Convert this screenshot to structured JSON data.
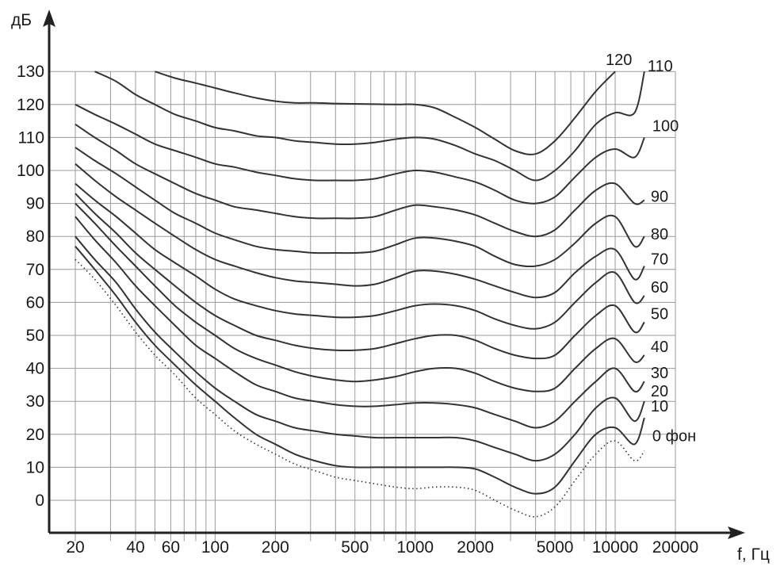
{
  "chart_data": {
    "type": "line",
    "title": "",
    "xlabel": "f, Гц",
    "ylabel": "дБ",
    "xscale": "log",
    "xlim": [
      20,
      20000
    ],
    "ylim": [
      -10,
      130
    ],
    "grid": true,
    "xticks": [
      20,
      40,
      60,
      100,
      200,
      500,
      1000,
      2000,
      5000,
      10000,
      20000
    ],
    "xtick_labels": [
      "20",
      "40",
      "60",
      "100",
      "200",
      "500",
      "1000",
      "2000",
      "5000",
      "10000",
      "20000"
    ],
    "yticks": [
      0,
      10,
      20,
      30,
      40,
      50,
      60,
      70,
      80,
      90,
      100,
      110,
      120,
      130
    ],
    "ytick_labels": [
      "0",
      "10",
      "20",
      "30",
      "40",
      "50",
      "60",
      "70",
      "80",
      "90",
      "100",
      "110",
      "120",
      "130"
    ],
    "series": [
      {
        "name": "0 фон",
        "style": "dotted",
        "x": [
          20,
          25,
          32,
          40,
          50,
          63,
          80,
          100,
          125,
          160,
          200,
          250,
          315,
          400,
          500,
          630,
          800,
          1000,
          1250,
          1600,
          2000,
          2500,
          3150,
          4000,
          5000,
          6300,
          8000,
          10000,
          12500,
          14000
        ],
        "y": [
          73,
          67,
          59,
          51,
          44,
          38,
          31,
          26,
          21,
          17,
          14,
          11,
          9,
          7,
          6,
          5,
          4,
          3.5,
          4,
          4,
          3,
          0,
          -3,
          -5,
          -2,
          6,
          14,
          18,
          12,
          15
        ]
      },
      {
        "name": "10",
        "x": [
          20,
          25,
          32,
          40,
          50,
          63,
          80,
          100,
          125,
          160,
          200,
          250,
          315,
          400,
          500,
          630,
          800,
          1000,
          1250,
          1600,
          2000,
          2500,
          3150,
          4000,
          5000,
          6300,
          8000,
          10000,
          12500,
          14000
        ],
        "y": [
          77,
          70,
          62,
          54,
          47,
          41,
          35,
          30,
          25,
          20,
          17,
          14,
          12,
          10.5,
          10,
          10,
          10,
          10,
          10,
          10,
          9.5,
          7,
          4,
          2,
          4,
          12,
          20,
          22,
          17,
          25
        ]
      },
      {
        "name": "20",
        "x": [
          20,
          25,
          32,
          40,
          50,
          63,
          80,
          100,
          125,
          160,
          200,
          250,
          315,
          400,
          500,
          630,
          800,
          1000,
          1250,
          1600,
          2000,
          2500,
          3150,
          4000,
          5000,
          6300,
          8000,
          10000,
          12500,
          14000
        ],
        "y": [
          80,
          73,
          66,
          58,
          51,
          45,
          39,
          34,
          30,
          26,
          24,
          22,
          21,
          20,
          19.5,
          19,
          19,
          19,
          19,
          19,
          18,
          16,
          14,
          12,
          14,
          20,
          28,
          31,
          24,
          30
        ]
      },
      {
        "name": "30",
        "x": [
          20,
          25,
          32,
          40,
          50,
          63,
          80,
          100,
          125,
          160,
          200,
          250,
          315,
          400,
          500,
          630,
          800,
          1000,
          1250,
          1600,
          2000,
          2500,
          3150,
          4000,
          5000,
          6300,
          8000,
          10000,
          12500,
          14000
        ],
        "y": [
          86,
          79,
          72,
          65,
          59,
          53,
          47,
          43,
          39,
          35,
          33,
          31,
          30,
          29,
          28.5,
          28.5,
          29,
          29.5,
          29.5,
          29,
          28,
          26,
          24,
          22,
          24,
          30,
          36,
          40,
          33,
          36
        ]
      },
      {
        "name": "40",
        "x": [
          20,
          25,
          32,
          40,
          50,
          63,
          80,
          100,
          125,
          160,
          200,
          250,
          315,
          400,
          500,
          630,
          800,
          1000,
          1250,
          1600,
          2000,
          2500,
          3150,
          4000,
          5000,
          6300,
          8000,
          10000,
          12500,
          14000
        ],
        "y": [
          90,
          84,
          77,
          71,
          65,
          59,
          54,
          50,
          46,
          43,
          41,
          39,
          37.5,
          36.5,
          36,
          36.5,
          37.5,
          39,
          40,
          40,
          38.5,
          36,
          34,
          33,
          34,
          40,
          46,
          49,
          42,
          44
        ]
      },
      {
        "name": "50",
        "x": [
          20,
          25,
          32,
          40,
          50,
          63,
          80,
          100,
          125,
          160,
          200,
          250,
          315,
          400,
          500,
          630,
          800,
          1000,
          1250,
          1600,
          2000,
          2500,
          3150,
          4000,
          5000,
          6300,
          8000,
          10000,
          12500,
          14000
        ],
        "y": [
          93,
          87,
          81,
          75,
          70,
          65,
          60,
          56,
          53,
          50,
          48.5,
          47,
          46,
          45.5,
          45.5,
          46,
          47.5,
          49,
          50,
          50,
          48.5,
          46,
          44,
          43,
          44,
          50,
          56,
          59,
          51,
          54
        ]
      },
      {
        "name": "60",
        "x": [
          20,
          25,
          32,
          40,
          50,
          63,
          80,
          100,
          125,
          160,
          200,
          250,
          315,
          400,
          500,
          630,
          800,
          1000,
          1250,
          1600,
          2000,
          2500,
          3150,
          4000,
          5000,
          6300,
          8000,
          10000,
          12500,
          14000
        ],
        "y": [
          96,
          91,
          86,
          81,
          76,
          72,
          68,
          64,
          61,
          59,
          57.5,
          56.5,
          56,
          55.5,
          55.5,
          56,
          57.5,
          59,
          59.5,
          59,
          57.5,
          55,
          53,
          52,
          54,
          60,
          66,
          69,
          60,
          62
        ]
      },
      {
        "name": "70",
        "x": [
          20,
          25,
          32,
          40,
          50,
          63,
          80,
          100,
          125,
          160,
          200,
          250,
          315,
          400,
          500,
          630,
          800,
          1000,
          1250,
          1600,
          2000,
          2500,
          3150,
          4000,
          5000,
          6300,
          8000,
          10000,
          12500,
          14000
        ],
        "y": [
          102,
          97,
          92,
          88,
          84,
          80,
          76,
          73,
          71,
          69,
          67.5,
          66.5,
          66,
          65.5,
          65,
          65.5,
          67.5,
          69.5,
          69.5,
          68.5,
          67,
          65,
          63,
          61.5,
          63,
          69,
          74,
          76,
          67,
          71
        ]
      },
      {
        "name": "80",
        "x": [
          20,
          25,
          32,
          40,
          50,
          63,
          80,
          100,
          125,
          160,
          200,
          250,
          315,
          400,
          500,
          630,
          800,
          1000,
          1250,
          1600,
          2000,
          2500,
          3150,
          4000,
          5000,
          6300,
          8000,
          10000,
          12500,
          14000
        ],
        "y": [
          107,
          103,
          99,
          95,
          91,
          87,
          84,
          81,
          79,
          77,
          76,
          75.5,
          75,
          75,
          75,
          75.5,
          77.5,
          79.5,
          79.5,
          78.5,
          77,
          74,
          71.5,
          71,
          73,
          78,
          84,
          86,
          77,
          80
        ]
      },
      {
        "name": "90",
        "x": [
          20,
          25,
          32,
          40,
          50,
          63,
          80,
          100,
          125,
          160,
          200,
          250,
          315,
          400,
          500,
          630,
          800,
          1000,
          1250,
          1600,
          2000,
          2500,
          3150,
          4000,
          5000,
          6300,
          8000,
          10000,
          12500,
          14000
        ],
        "y": [
          114,
          110,
          106,
          102,
          99,
          96,
          93,
          91,
          89,
          88,
          87,
          86,
          85.5,
          85.5,
          85.5,
          86,
          88,
          89.5,
          89,
          88,
          86.5,
          84,
          81.5,
          80,
          82,
          88,
          94,
          96,
          90,
          91
        ]
      },
      {
        "name": "100",
        "x": [
          20,
          25,
          32,
          40,
          50,
          63,
          80,
          100,
          125,
          160,
          200,
          250,
          315,
          400,
          500,
          630,
          800,
          1000,
          1250,
          1600,
          2000,
          2500,
          3150,
          4000,
          5000,
          6300,
          8000,
          10000,
          12500,
          14000
        ],
        "y": [
          120,
          117,
          114,
          111,
          108,
          106,
          104,
          102,
          101,
          99.5,
          98.5,
          97.5,
          97,
          97,
          97,
          97.5,
          99,
          100,
          99.5,
          98,
          96.5,
          94,
          91,
          90,
          92,
          98,
          104,
          106.5,
          104,
          110
        ]
      },
      {
        "name": "110",
        "x": [
          25,
          32,
          40,
          50,
          63,
          80,
          100,
          125,
          160,
          200,
          250,
          315,
          400,
          500,
          630,
          800,
          1000,
          1250,
          1600,
          2000,
          2500,
          3150,
          4000,
          5000,
          6300,
          8000,
          10000,
          12500,
          14000
        ],
        "y": [
          130,
          127,
          123,
          120,
          117,
          115,
          113,
          112,
          110.5,
          110,
          109,
          108.5,
          108,
          108,
          108.5,
          109.5,
          110,
          109.5,
          107.5,
          105,
          103,
          100,
          97,
          100,
          106,
          114,
          117.5,
          117.5,
          130
        ]
      },
      {
        "name": "120",
        "x": [
          50,
          63,
          80,
          100,
          125,
          160,
          200,
          250,
          315,
          400,
          500,
          630,
          800,
          1000,
          1250,
          1600,
          2000,
          2500,
          3150,
          4000,
          5000,
          6300,
          8000,
          10000
        ],
        "y": [
          130,
          128,
          126.5,
          125,
          123.5,
          122,
          121,
          120.5,
          120.5,
          120.3,
          120.2,
          120.1,
          120,
          120,
          119,
          116,
          113,
          109.5,
          106,
          105,
          109,
          116,
          124,
          130
        ]
      }
    ],
    "curve_labels": [
      "0 фон",
      "10",
      "20",
      "30",
      "40",
      "50",
      "60",
      "70",
      "80",
      "90",
      "100",
      "110",
      "120"
    ]
  }
}
